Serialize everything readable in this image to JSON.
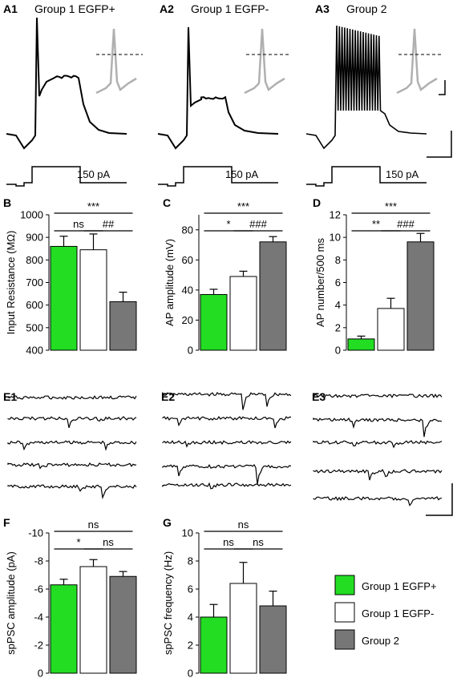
{
  "colors": {
    "green": "#22dd22",
    "white": "#ffffff",
    "gray": "#777777",
    "trace": "#000000",
    "inset": "#b0b0b0"
  },
  "panels_a": [
    {
      "label": "A1",
      "title": "Group 1 EGFP+",
      "step": "150 pA"
    },
    {
      "label": "A2",
      "title": "Group 1 EGFP-",
      "step": "150 pA"
    },
    {
      "label": "A3",
      "title": "Group 2",
      "step": "150 pA"
    }
  ],
  "panels_e": [
    "E1",
    "E2",
    "E3"
  ],
  "legend": [
    {
      "label": "Group 1 EGFP+",
      "color": "#22dd22"
    },
    {
      "label": "Group 1 EGFP-",
      "color": "#ffffff"
    },
    {
      "label": "Group 2",
      "color": "#777777"
    }
  ],
  "chart_data": [
    {
      "panel": "B",
      "type": "bar",
      "ylabel": "Input Resistance (MΩ)",
      "ylim": [
        400,
        1000
      ],
      "yticks": [
        "400",
        "500",
        "600",
        "700",
        "800",
        "900",
        "1000"
      ],
      "categories": [
        "Group 1 EGFP+",
        "Group 1 EGFP-",
        "Group 2"
      ],
      "values": [
        860,
        845,
        615
      ],
      "errors": [
        45,
        70,
        42
      ],
      "significance": [
        {
          "from": 0,
          "to": 2,
          "label": "***"
        },
        {
          "from": 0,
          "to": 1,
          "label": "ns"
        },
        {
          "from": 1,
          "to": 2,
          "label": "##"
        }
      ]
    },
    {
      "panel": "C",
      "type": "bar",
      "ylabel": "AP amplitude (mV)",
      "ylim": [
        0,
        90
      ],
      "yticks": [
        "0",
        "20",
        "40",
        "60",
        "80"
      ],
      "categories": [
        "Group 1 EGFP+",
        "Group 1 EGFP-",
        "Group 2"
      ],
      "values": [
        37,
        49,
        72
      ],
      "errors": [
        3.5,
        3.5,
        3.5
      ],
      "significance": [
        {
          "from": 0,
          "to": 2,
          "label": "***"
        },
        {
          "from": 0,
          "to": 1,
          "label": "*"
        },
        {
          "from": 1,
          "to": 2,
          "label": "###"
        }
      ]
    },
    {
      "panel": "D",
      "type": "bar",
      "ylabel": "AP number/500 ms",
      "ylim": [
        0,
        12
      ],
      "yticks": [
        "0",
        "2",
        "4",
        "6",
        "8",
        "10",
        "12"
      ],
      "categories": [
        "Group 1 EGFP+",
        "Group 1 EGFP-",
        "Group 2"
      ],
      "values": [
        1.0,
        3.7,
        9.6
      ],
      "errors": [
        0.25,
        0.9,
        0.75
      ],
      "significance": [
        {
          "from": 0,
          "to": 2,
          "label": "***"
        },
        {
          "from": 0,
          "to": 1,
          "label": "**"
        },
        {
          "from": 1,
          "to": 2,
          "label": "###"
        }
      ]
    },
    {
      "panel": "F",
      "type": "bar",
      "ylabel": "spPSC amplitude (pA)",
      "ylim": [
        0,
        -10
      ],
      "yticks": [
        "0",
        "-2",
        "-4",
        "-6",
        "-8",
        "-10"
      ],
      "categories": [
        "Group 1 EGFP+",
        "Group 1 EGFP-",
        "Group 2"
      ],
      "values": [
        -6.3,
        -7.6,
        -6.9
      ],
      "errors": [
        0.4,
        0.5,
        0.35
      ],
      "significance": [
        {
          "from": 0,
          "to": 2,
          "label": "ns"
        },
        {
          "from": 0,
          "to": 1,
          "label": "*"
        },
        {
          "from": 1,
          "to": 2,
          "label": "ns"
        }
      ]
    },
    {
      "panel": "G",
      "type": "bar",
      "ylabel": "spPSC frequency (Hz)",
      "ylim": [
        0,
        10
      ],
      "yticks": [
        "0",
        "2",
        "4",
        "6",
        "8",
        "10"
      ],
      "categories": [
        "Group 1 EGFP+",
        "Group 1 EGFP-",
        "Group 2"
      ],
      "values": [
        4.0,
        6.4,
        4.8
      ],
      "errors": [
        0.9,
        1.5,
        1.05
      ],
      "significance": [
        {
          "from": 0,
          "to": 2,
          "label": "ns"
        },
        {
          "from": 0,
          "to": 1,
          "label": "ns"
        },
        {
          "from": 1,
          "to": 2,
          "label": "ns"
        }
      ]
    }
  ]
}
